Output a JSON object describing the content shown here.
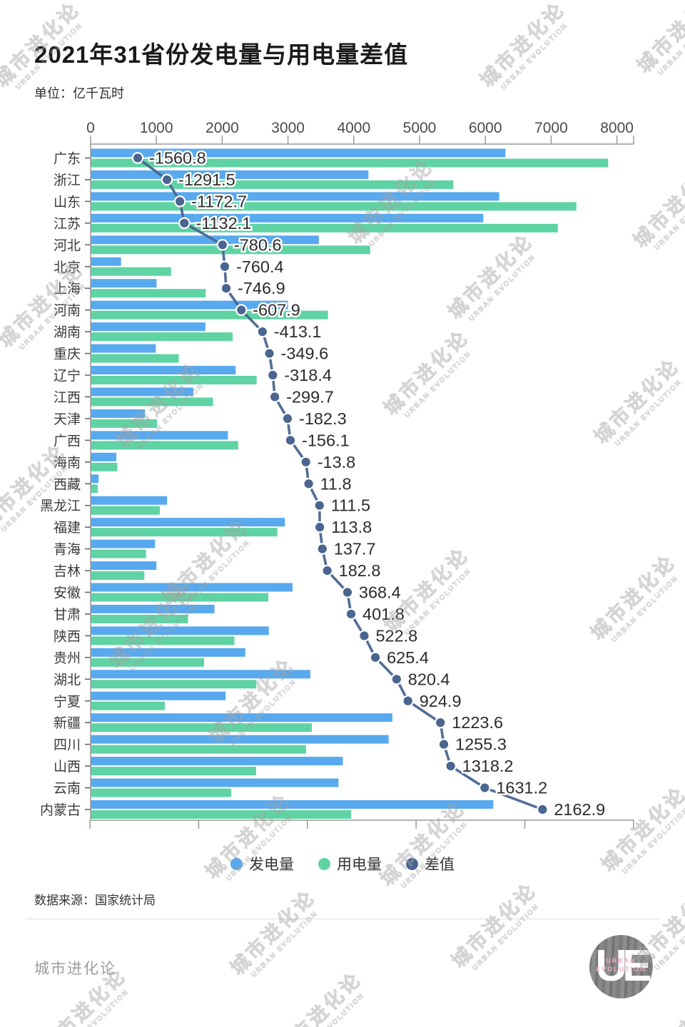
{
  "header": {
    "title": "2021年31省份发电量与用电量差值",
    "unit_label": "单位：亿千瓦时"
  },
  "chart_data": {
    "type": "bar",
    "orientation": "horizontal",
    "unit": "亿千瓦时",
    "categories": [
      "广东",
      "浙江",
      "山东",
      "江苏",
      "河北",
      "北京",
      "上海",
      "河南",
      "湖南",
      "重庆",
      "辽宁",
      "江西",
      "天津",
      "广西",
      "海南",
      "西藏",
      "黑龙江",
      "福建",
      "青海",
      "吉林",
      "安徽",
      "甘肃",
      "陕西",
      "贵州",
      "湖北",
      "宁夏",
      "新疆",
      "四川",
      "山西",
      "云南",
      "内蒙古"
    ],
    "series": [
      {
        "name": "发电量",
        "kind": "bar",
        "color": "#58a9ee",
        "values": [
          6305.8,
          4222.5,
          6210.6,
          5968.9,
          3469.1,
          462.6,
          1002.7,
          2999.9,
          1745.7,
          990.2,
          2205.1,
          1560.4,
          826.5,
          2087.0,
          390.8,
          121.0,
          1162.6,
          2952.6,
          979.7,
          1000.1,
          3069.3,
          1882.7,
          2708.9,
          2350.1,
          3339.5,
          2053.2,
          4586.6,
          4529.8,
          3834.2,
          3767.2,
          6121.3
        ]
      },
      {
        "name": "用电量",
        "kind": "bar",
        "color": "#5fd3a4",
        "values": [
          7866.6,
          5514.0,
          7383.3,
          7101.0,
          4249.7,
          1223.0,
          1749.6,
          3607.8,
          2158.8,
          1339.8,
          2523.5,
          1860.1,
          1008.8,
          2243.1,
          404.6,
          109.2,
          1051.1,
          2838.8,
          842.0,
          817.3,
          2700.9,
          1480.9,
          2186.1,
          1724.7,
          2519.1,
          1128.3,
          3363.0,
          3274.5,
          2516.0,
          2136.0,
          3958.4
        ]
      },
      {
        "name": "差值",
        "kind": "line",
        "color": "#4a6590",
        "values": [
          -1560.8,
          -1291.5,
          -1172.7,
          -1132.1,
          -780.6,
          -760.4,
          -746.9,
          -607.9,
          -413.1,
          -349.6,
          -318.4,
          -299.7,
          -182.3,
          -156.1,
          -13.8,
          11.8,
          111.5,
          113.8,
          137.7,
          182.8,
          368.4,
          401.8,
          522.8,
          625.4,
          820.4,
          924.9,
          1223.6,
          1255.3,
          1318.2,
          1631.2,
          2162.9
        ],
        "labels": [
          "-1560.8",
          "-1291.5",
          "-1172.7",
          "-1132.1",
          "-780.6",
          "-760.4",
          "-746.9",
          "-607.9",
          "-413.1",
          "-349.6",
          "-318.4",
          "-299.7",
          "-182.3",
          "-156.1",
          "-13.8",
          "11.8",
          "111.5",
          "113.8",
          "137.7",
          "182.8",
          "368.4",
          "401.8",
          "522.8",
          "625.4",
          "820.4",
          "924.9",
          "1223.6",
          "1255.3",
          "1318.2",
          "1631.2",
          "2162.9"
        ]
      }
    ],
    "top_axis": {
      "ticks": [
        0,
        1000,
        2000,
        3000,
        4000,
        5000,
        6000,
        7000,
        8000
      ],
      "range": [
        0,
        8255
      ]
    },
    "bottom_axis": {
      "ticks": [
        -2000,
        -1000,
        0,
        1000,
        2000,
        3000
      ],
      "range": [
        -2000,
        3000
      ]
    },
    "legend_position": "bottom",
    "grid": false
  },
  "colors": {
    "generation_bar": "#58a9ee",
    "consumption_bar": "#5fd3a4",
    "diff_line": "#4a6590",
    "axis": "#9a9a9a",
    "axis_text": "#4a4a4a",
    "category_text": "#3a3a3a",
    "value_text": "#2c2c2c"
  },
  "source": {
    "text": "数据来源：国家统计局"
  },
  "footer": {
    "brand": "城市进化论",
    "logo_letters": "UE",
    "logo_line1": "URBAN",
    "logo_line2": "EVOLUTION"
  },
  "watermark": {
    "line1": "城市进化论",
    "line2": "URBAN EVOLUTION"
  }
}
